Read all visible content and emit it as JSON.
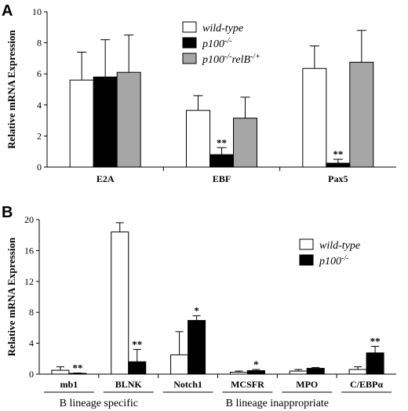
{
  "chart_data": [
    {
      "panel": "A",
      "type": "bar",
      "ylabel": "Relative mRNA Expression",
      "ylim": [
        0,
        10
      ],
      "yticks": [
        "0",
        "2",
        "4",
        "6",
        "8",
        "10"
      ],
      "categories": [
        "E2A",
        "EBF",
        "Pax5"
      ],
      "series": [
        {
          "name": "wild-type",
          "legend_main": "wild-type",
          "legend_sup": "",
          "color": "#ffffff",
          "values": [
            5.6,
            3.65,
            6.35
          ],
          "errors": [
            1.8,
            0.95,
            1.45
          ],
          "marks": [
            "",
            "",
            ""
          ]
        },
        {
          "name": "p100-/-",
          "legend_main": "p100",
          "legend_sup": "-/-",
          "color": "#000000",
          "values": [
            5.8,
            0.8,
            0.25
          ],
          "errors": [
            2.4,
            0.45,
            0.25
          ],
          "marks": [
            "",
            "**",
            "**"
          ]
        },
        {
          "name": "p100-/-relB-/+",
          "legend_main": "p100",
          "legend_sup": "-/-",
          "legend_main2": "relB",
          "legend_sup2": "-/+",
          "color": "#a6a6a6",
          "values": [
            6.1,
            3.15,
            6.75
          ],
          "errors": [
            2.4,
            1.35,
            2.05
          ],
          "marks": [
            "",
            "",
            ""
          ]
        }
      ],
      "legend_placement": "top-center"
    },
    {
      "panel": "B",
      "type": "bar",
      "ylabel": "Relative mRNA Expression",
      "ylim": [
        0,
        20
      ],
      "yticks": [
        "0",
        "4",
        "8",
        "12",
        "16",
        "20"
      ],
      "categories": [
        "mb1",
        "BLNK",
        "Notch1",
        "MCSFR",
        "MPO",
        "C/EBPα"
      ],
      "series": [
        {
          "name": "wild-type",
          "legend_main": "wild-type",
          "legend_sup": "",
          "color": "#ffffff",
          "values": [
            0.5,
            18.4,
            2.5,
            0.25,
            0.4,
            0.6
          ],
          "errors": [
            0.45,
            1.2,
            3.0,
            0.15,
            0.2,
            0.35
          ],
          "marks": [
            "",
            "",
            "",
            "",
            "",
            ""
          ]
        },
        {
          "name": "p100-/-",
          "legend_main": "p100",
          "legend_sup": "-/-",
          "color": "#000000",
          "values": [
            0.1,
            1.6,
            6.95,
            0.45,
            0.75,
            2.75
          ],
          "errors": [
            0.05,
            1.6,
            0.6,
            0.15,
            0.1,
            0.85
          ],
          "marks": [
            "**",
            "**",
            "*",
            "*",
            "",
            "**"
          ]
        }
      ],
      "groups": [
        "B lineage specific",
        "B lineage inappropriate"
      ],
      "legend_placement": "top-right"
    }
  ]
}
